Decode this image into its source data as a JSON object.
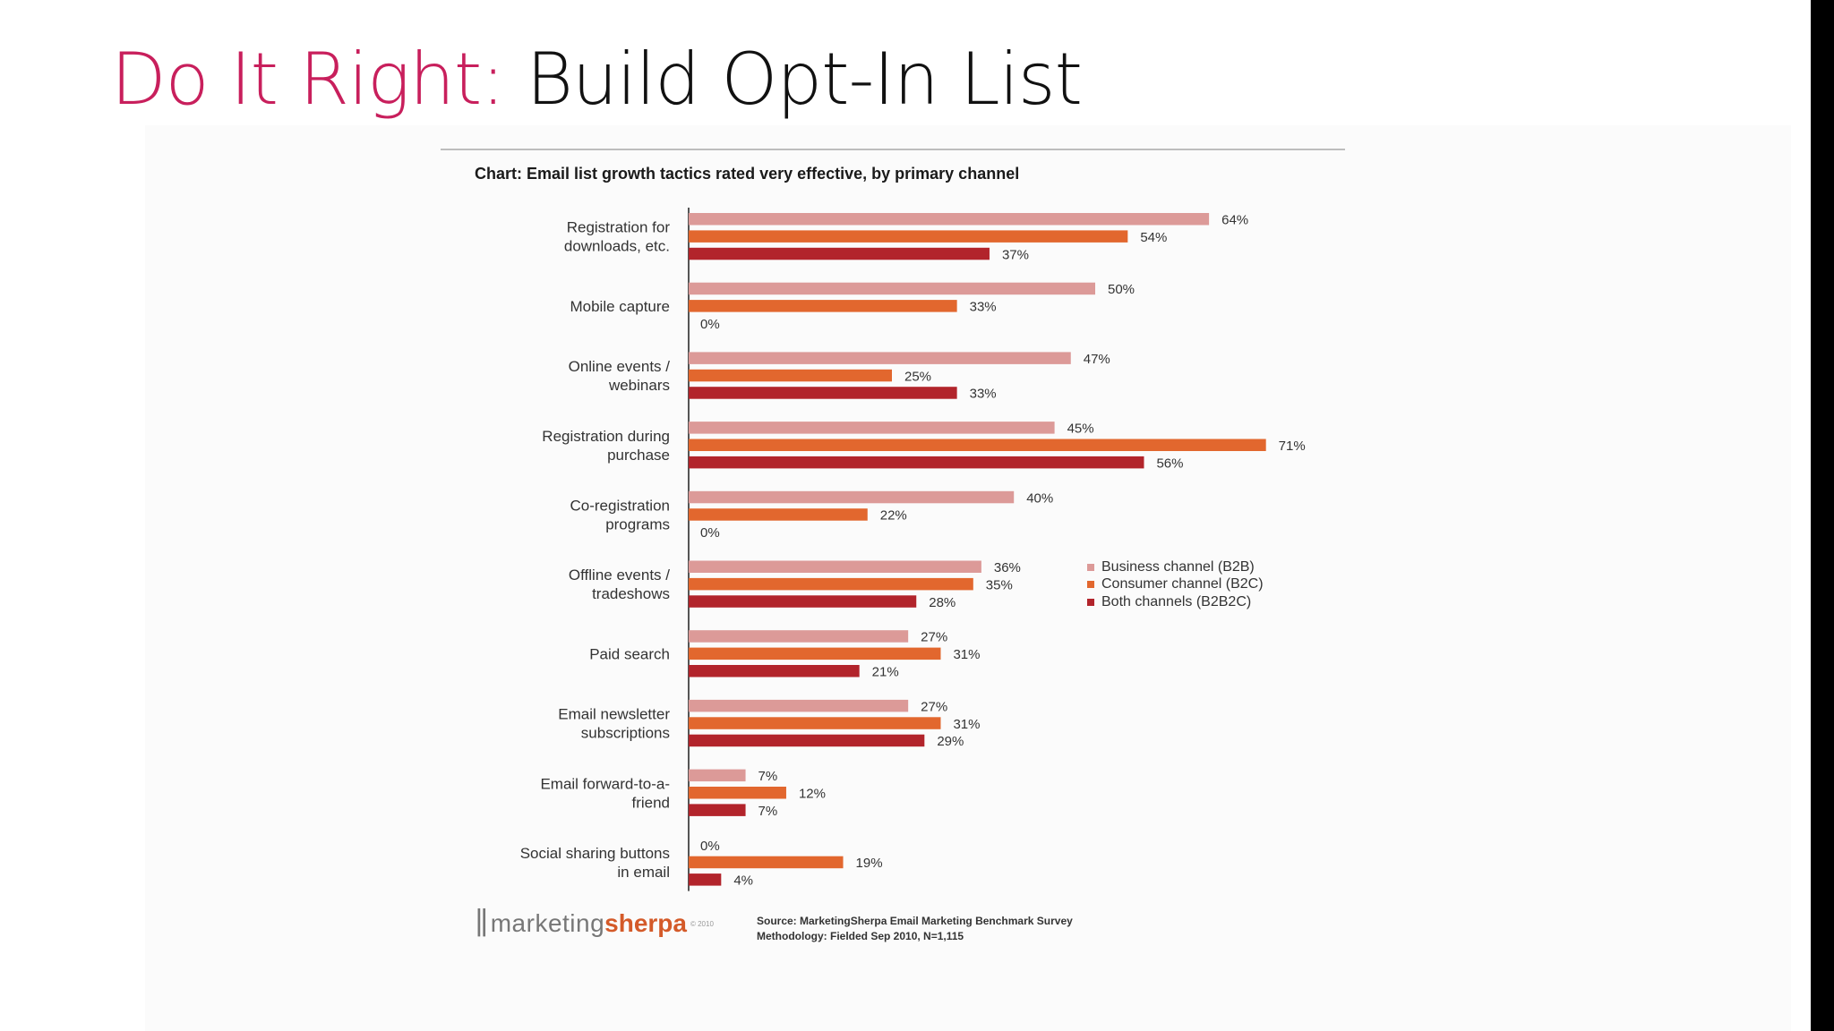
{
  "slide": {
    "title_accent": "Do It Right:",
    "title_rest": "Build Opt-In List"
  },
  "chart_data": {
    "type": "bar",
    "orientation": "horizontal",
    "title": "Chart: Email list growth tactics rated very effective, by primary channel",
    "categories": [
      [
        "Registration for",
        "downloads, etc."
      ],
      [
        "Mobile capture"
      ],
      [
        "Online events /",
        "webinars"
      ],
      [
        "Registration during",
        "purchase"
      ],
      [
        "Co-registration",
        "programs"
      ],
      [
        "Offline events /",
        "tradeshows"
      ],
      [
        "Paid search"
      ],
      [
        "Email newsletter",
        "subscriptions"
      ],
      [
        "Email forward-to-a-",
        "friend"
      ],
      [
        "Social sharing buttons",
        "in email"
      ]
    ],
    "series": [
      {
        "name": "Business channel (B2B)",
        "color": "#dc9a98",
        "values": [
          64,
          50,
          47,
          45,
          40,
          36,
          27,
          27,
          7,
          0
        ]
      },
      {
        "name": "Consumer channel (B2C)",
        "color": "#e2672e",
        "values": [
          54,
          33,
          25,
          71,
          22,
          35,
          31,
          31,
          12,
          19
        ]
      },
      {
        "name": "Both channels (B2B2C)",
        "color": "#b2242b",
        "values": [
          37,
          0,
          33,
          56,
          0,
          28,
          21,
          29,
          7,
          4
        ]
      }
    ],
    "value_suffix": "%",
    "xlim": [
      0,
      72
    ],
    "legend_position": "right",
    "grid": false
  },
  "footer": {
    "logo_word1": "marketing",
    "logo_word2": "sherpa",
    "logo_copy": "© 2010",
    "source_line1": "Source: MarketingSherpa Email Marketing Benchmark Survey",
    "source_line2": "Methodology: Fielded Sep 2010, N=1,115"
  }
}
